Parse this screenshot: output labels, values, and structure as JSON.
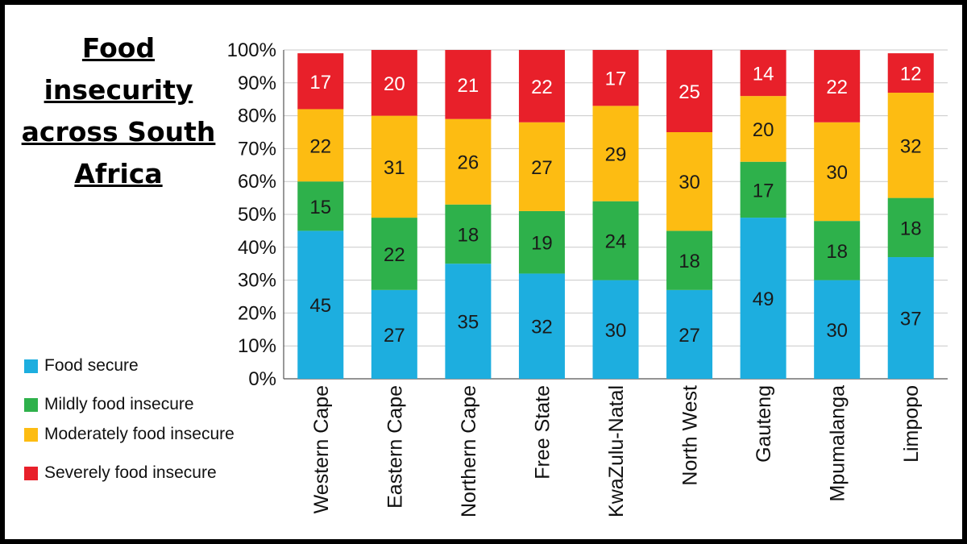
{
  "title": "Food insecurity across South Africa",
  "colors": {
    "food_secure": "#1daedf",
    "mild": "#2eb14b",
    "moderate": "#fdbc12",
    "severe": "#e8202a",
    "grid": "#c8c8c8",
    "axis": "#555555"
  },
  "chart_data": {
    "type": "bar",
    "stacked": true,
    "categories": [
      "Western Cape",
      "Eastern Cape",
      "Northern Cape",
      "Free State",
      "KwaZulu-Natal",
      "North West",
      "Gauteng",
      "Mpumalanga",
      "Limpopo"
    ],
    "series": [
      {
        "name": "Food secure",
        "color": "#1daedf",
        "label_color": "#1a1a1a",
        "values": [
          45,
          27,
          35,
          32,
          30,
          27,
          49,
          30,
          37
        ]
      },
      {
        "name": "Mildly food insecure",
        "color": "#2eb14b",
        "label_color": "#1a1a1a",
        "values": [
          15,
          22,
          18,
          19,
          24,
          18,
          17,
          18,
          18
        ]
      },
      {
        "name": "Moderately food insecure",
        "color": "#fdbc12",
        "label_color": "#1a1a1a",
        "values": [
          22,
          31,
          26,
          27,
          29,
          30,
          20,
          30,
          32
        ]
      },
      {
        "name": "Severely food insecure",
        "color": "#e8202a",
        "label_color": "#ffffff",
        "values": [
          17,
          20,
          21,
          22,
          17,
          25,
          14,
          22,
          12
        ]
      }
    ],
    "ylim": [
      0,
      100
    ],
    "yticks": [
      "0%",
      "10%",
      "20%",
      "30%",
      "40%",
      "50%",
      "60%",
      "70%",
      "80%",
      "90%",
      "100%"
    ],
    "grid": true,
    "legend_position": "bottom-left"
  }
}
